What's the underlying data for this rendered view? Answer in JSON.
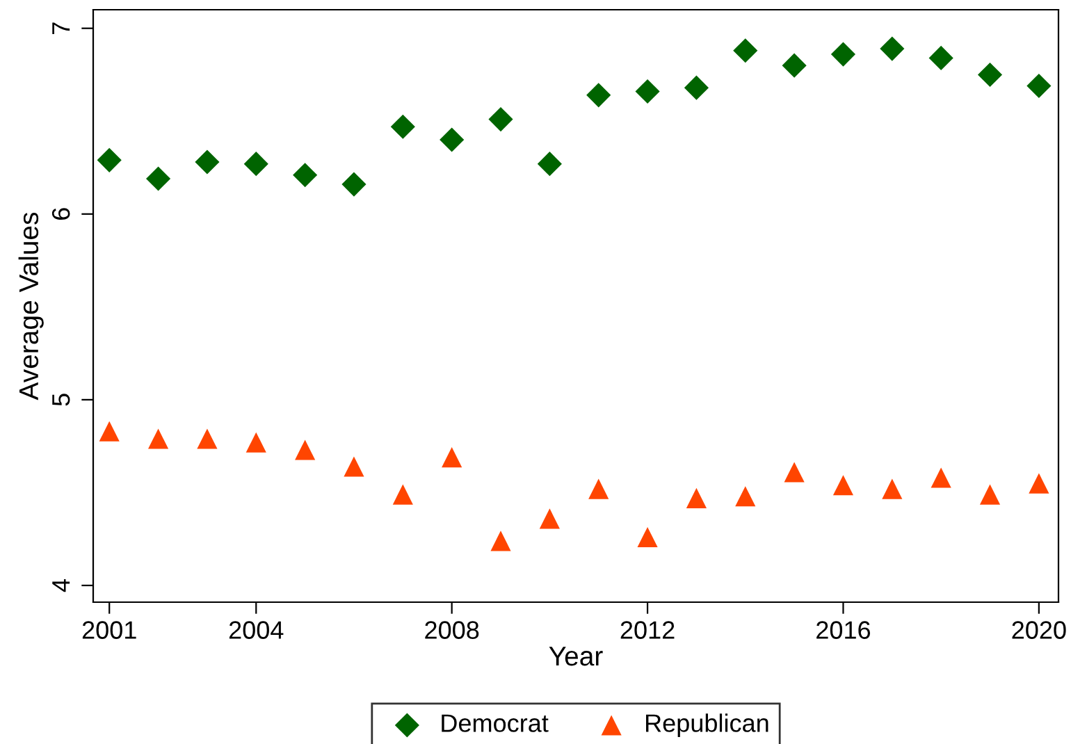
{
  "chart_data": {
    "type": "scatter",
    "xlabel": "Year",
    "ylabel": "Average Values",
    "x": [
      2001,
      2002,
      2003,
      2004,
      2005,
      2006,
      2007,
      2008,
      2009,
      2010,
      2011,
      2012,
      2013,
      2014,
      2015,
      2016,
      2017,
      2018,
      2019,
      2020
    ],
    "series": [
      {
        "name": "Democrat",
        "color": "#006400",
        "marker": "diamond",
        "values": [
          6.29,
          6.19,
          6.28,
          6.27,
          6.21,
          6.16,
          6.47,
          6.4,
          6.51,
          6.27,
          6.64,
          6.66,
          6.68,
          6.88,
          6.8,
          6.86,
          6.89,
          6.84,
          6.75,
          6.69
        ]
      },
      {
        "name": "Republican",
        "color": "#ff4500",
        "marker": "triangle",
        "values": [
          4.83,
          4.79,
          4.79,
          4.77,
          4.73,
          4.64,
          4.49,
          4.69,
          4.24,
          4.36,
          4.52,
          4.26,
          4.47,
          4.48,
          4.61,
          4.54,
          4.52,
          4.58,
          4.49,
          4.55
        ]
      }
    ],
    "xlim": [
      2000.67,
      2020.4
    ],
    "xticks": [
      2001,
      2004,
      2008,
      2012,
      2016,
      2020
    ],
    "ylim": [
      3.91,
      7.1
    ],
    "yticks": [
      4,
      5,
      6,
      7
    ],
    "grid": false,
    "legend": "bottom"
  }
}
